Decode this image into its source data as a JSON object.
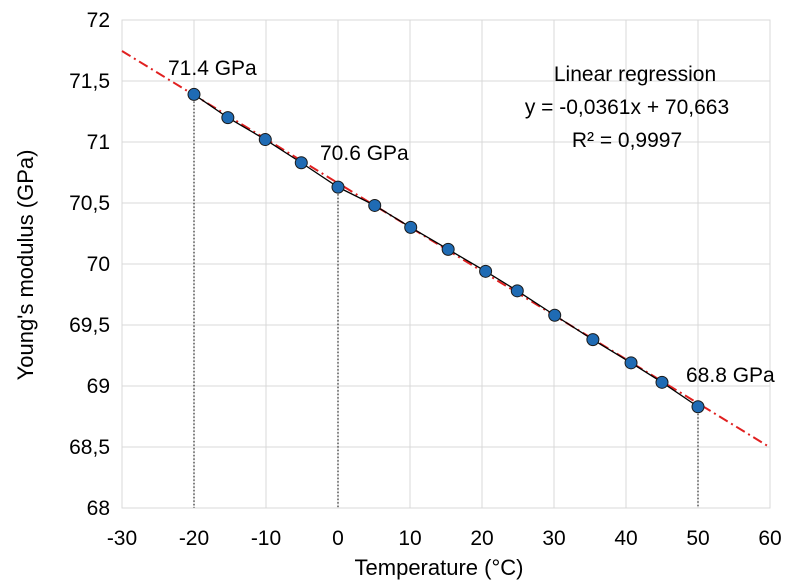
{
  "chart_data": {
    "type": "scatter",
    "title": "",
    "xlabel": "Temperature (°C)",
    "ylabel": "Young's modulus (GPa)",
    "xlim": [
      -30,
      60
    ],
    "ylim": [
      68,
      72
    ],
    "x_ticks": [
      -30,
      -20,
      -10,
      0,
      10,
      20,
      30,
      40,
      50,
      60
    ],
    "x_tick_labels": [
      "-30",
      "-20",
      "-10",
      "0",
      "10",
      "20",
      "30",
      "40",
      "50",
      "60"
    ],
    "y_ticks": [
      68,
      68.5,
      69,
      69.5,
      70,
      70.5,
      71,
      71.5,
      72
    ],
    "y_tick_labels": [
      "68",
      "68,5",
      "69",
      "69,5",
      "70",
      "70,5",
      "71",
      "71,5",
      "72"
    ],
    "grid": true,
    "legend": false,
    "series": [
      {
        "x": [
          -20,
          -15.3,
          -10.1,
          -5.1,
          0,
          5.1,
          10.1,
          15.3,
          20.5,
          24.9,
          30.1,
          35.4,
          40.7,
          45,
          50
        ],
        "y": [
          71.39,
          71.2,
          71.02,
          70.83,
          70.63,
          70.48,
          70.3,
          70.12,
          69.94,
          69.78,
          69.58,
          69.38,
          69.19,
          69.03,
          68.83
        ],
        "color": "#1f6bb4",
        "marker": "circle"
      }
    ],
    "regression": {
      "label": "Linear regression",
      "equation": "y = -0,0361x + 70,663",
      "r_squared": "R² = 0,9997",
      "slope": -0.0361,
      "intercept": 70.663,
      "color": "#e02020",
      "style": "dash-dot"
    },
    "annotations": [
      {
        "text": "71.4 GPa",
        "x": -20,
        "y": 71.39
      },
      {
        "text": "70.6 GPa",
        "x": 0,
        "y": 70.63
      },
      {
        "text": "68.8 GPa",
        "x": 50,
        "y": 68.83
      }
    ],
    "drop_lines_x": [
      -20,
      0,
      50
    ]
  }
}
